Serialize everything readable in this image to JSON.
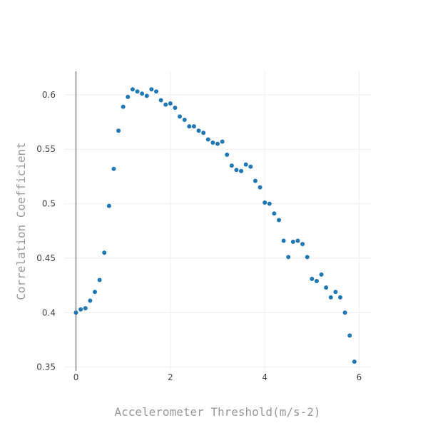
{
  "chart_data": {
    "type": "scatter",
    "title": "",
    "xlabel": "Accelerometer Threshold(m/s-2)",
    "ylabel": "Correlation Coefficient",
    "xlim": [
      -0.25,
      6.25
    ],
    "ylim": [
      0.3465,
      0.6215
    ],
    "xticks": [
      0,
      2,
      4,
      6
    ],
    "xtick_labels": [
      "0",
      "2",
      "4",
      "6"
    ],
    "yticks": [
      0.35,
      0.4,
      0.45,
      0.5,
      0.55,
      0.6
    ],
    "ytick_labels": [
      "0.35",
      "0.4",
      "0.45",
      "0.5",
      "0.55",
      "0.6"
    ],
    "grid": true,
    "marker_color": "#1f77b4",
    "x": [
      0.0,
      0.1,
      0.2,
      0.3,
      0.4,
      0.5,
      0.6,
      0.7,
      0.8,
      0.9,
      1.0,
      1.1,
      1.2,
      1.3,
      1.4,
      1.5,
      1.6,
      1.7,
      1.8,
      1.9,
      2.0,
      2.1,
      2.2,
      2.3,
      2.4,
      2.5,
      2.6,
      2.7,
      2.8,
      2.9,
      3.0,
      3.1,
      3.2,
      3.3,
      3.4,
      3.5,
      3.6,
      3.7,
      3.8,
      3.9,
      4.0,
      4.1,
      4.2,
      4.3,
      4.4,
      4.5,
      4.6,
      4.7,
      4.8,
      4.9,
      5.0,
      5.1,
      5.2,
      5.3,
      5.4,
      5.5,
      5.6,
      5.7,
      5.8,
      5.9
    ],
    "y": [
      0.4,
      0.403,
      0.404,
      0.411,
      0.419,
      0.43,
      0.455,
      0.498,
      0.532,
      0.567,
      0.589,
      0.598,
      0.605,
      0.603,
      0.601,
      0.599,
      0.605,
      0.603,
      0.595,
      0.591,
      0.592,
      0.588,
      0.58,
      0.577,
      0.571,
      0.571,
      0.567,
      0.565,
      0.559,
      0.556,
      0.555,
      0.557,
      0.545,
      0.535,
      0.531,
      0.53,
      0.536,
      0.534,
      0.521,
      0.515,
      0.501,
      0.5,
      0.491,
      0.485,
      0.466,
      0.451,
      0.465,
      0.466,
      0.463,
      0.451,
      0.431,
      0.429,
      0.435,
      0.423,
      0.414,
      0.419,
      0.414,
      0.4,
      0.379,
      0.355
    ]
  }
}
